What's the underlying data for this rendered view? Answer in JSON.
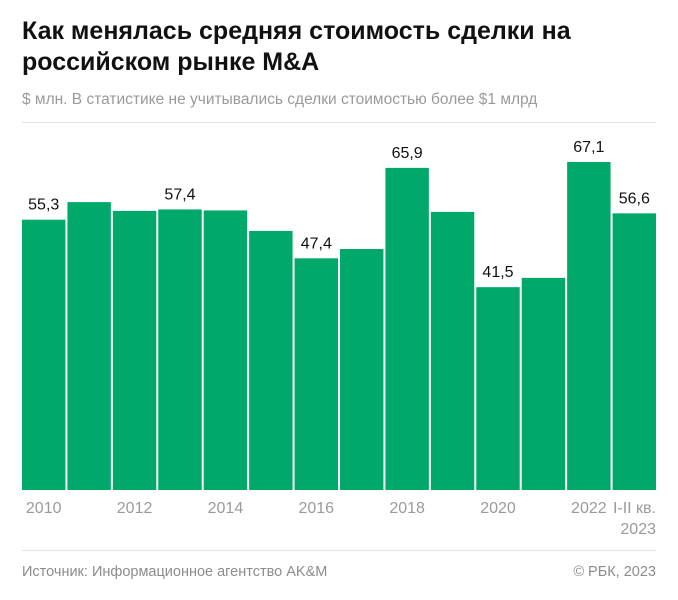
{
  "title": "Как менялась средняя стоимость сделки на российском рынке M&A",
  "subtitle": "$ млн. В статистике не учитывались сделки стоимостью более $1 млрд",
  "source": "Источник: Информационное агентство AK&M",
  "copyright": "© РБК, 2023",
  "chart_data": {
    "type": "bar",
    "categories": [
      "2010",
      "2011",
      "2012",
      "2013",
      "2014",
      "2015",
      "2016",
      "2017",
      "2018",
      "2019",
      "2020",
      "2021",
      "2022",
      "I-II кв. 2023"
    ],
    "values": [
      55.3,
      58.9,
      57.1,
      57.4,
      57.2,
      53.0,
      47.4,
      49.3,
      65.9,
      56.9,
      41.5,
      43.4,
      67.1,
      56.6
    ],
    "data_labels": [
      "55,3",
      "",
      "",
      "57,4",
      "",
      "",
      "47,4",
      "",
      "65,9",
      "",
      "41,5",
      "",
      "67,1",
      "56,6"
    ],
    "tick_labels": [
      "2010",
      "",
      "2012",
      "",
      "2014",
      "",
      "2016",
      "",
      "2018",
      "",
      "2020",
      "",
      "2022",
      "I-II кв.|2023"
    ],
    "ylim": [
      0,
      70
    ],
    "grid": false,
    "color": "#00a96a"
  }
}
